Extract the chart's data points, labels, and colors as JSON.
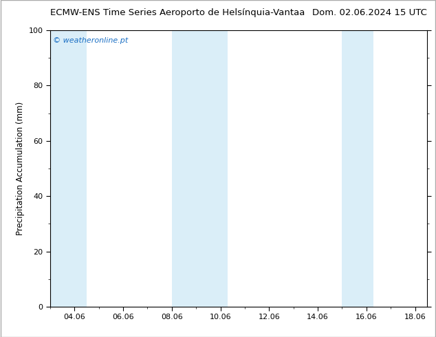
{
  "title_left": "ECMW-ENS Time Series Aeroporto de Helsínquia-Vantaa",
  "title_right": "Dom. 02.06.2024 15 UTC",
  "ylabel": "Precipitation Accumulation (mm)",
  "ylim": [
    0,
    100
  ],
  "yticks": [
    0,
    20,
    40,
    60,
    80,
    100
  ],
  "xlim": [
    3.0,
    18.5
  ],
  "xtick_positions": [
    4,
    6,
    8,
    10,
    12,
    14,
    16,
    18
  ],
  "xtick_labels": [
    "04.06",
    "06.06",
    "08.06",
    "10.06",
    "12.06",
    "14.06",
    "16.06",
    "18.06"
  ],
  "watermark": "© weatheronline.pt",
  "watermark_color": "#1a6fc4",
  "shaded_bands": [
    {
      "xmin": 3.0,
      "xmax": 4.5
    },
    {
      "xmin": 8.0,
      "xmax": 10.3
    },
    {
      "xmin": 15.0,
      "xmax": 16.3
    }
  ],
  "band_color": "#daeef8",
  "background_color": "#ffffff",
  "plot_bg_color": "#ffffff",
  "title_fontsize": 9.5,
  "axis_label_fontsize": 8.5,
  "tick_fontsize": 8,
  "watermark_fontsize": 8
}
